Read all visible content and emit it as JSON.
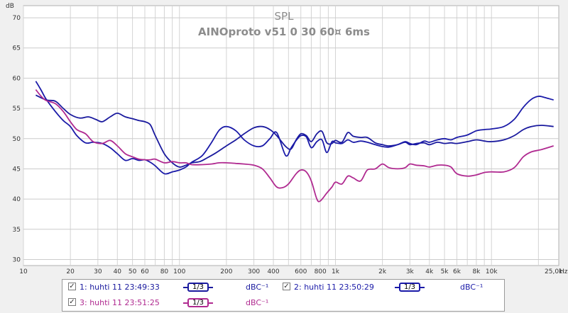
{
  "chart_data": {
    "type": "line",
    "title": "SPL",
    "subtitle": "AINOproto v51 0 30 60¤ 6ms",
    "ylabel": "dB",
    "xunit": "Hz",
    "xscale": "log",
    "xlim": [
      10,
      27000
    ],
    "ylim": [
      29,
      72
    ],
    "grid": true,
    "yticks": [
      {
        "value": 30,
        "label": "30"
      },
      {
        "value": 35,
        "label": "35"
      },
      {
        "value": 40,
        "label": "40"
      },
      {
        "value": 45,
        "label": "45"
      },
      {
        "value": 50,
        "label": "50"
      },
      {
        "value": 55,
        "label": "55"
      },
      {
        "value": 60,
        "label": "60"
      },
      {
        "value": 65,
        "label": "65"
      },
      {
        "value": 70,
        "label": "70"
      }
    ],
    "xticks": [
      {
        "value": 10,
        "label": "10"
      },
      {
        "value": 20,
        "label": "20"
      },
      {
        "value": 30,
        "label": "30"
      },
      {
        "value": 40,
        "label": "40"
      },
      {
        "value": 50,
        "label": "50"
      },
      {
        "value": 60,
        "label": "60"
      },
      {
        "value": 80,
        "label": "80"
      },
      {
        "value": 100,
        "label": "100"
      },
      {
        "value": 200,
        "label": "200"
      },
      {
        "value": 300,
        "label": "300"
      },
      {
        "value": 400,
        "label": "400"
      },
      {
        "value": 600,
        "label": "600"
      },
      {
        "value": 800,
        "label": "800"
      },
      {
        "value": 1000,
        "label": "1k"
      },
      {
        "value": 2000,
        "label": "2k"
      },
      {
        "value": 3000,
        "label": "3k"
      },
      {
        "value": 4000,
        "label": "4k"
      },
      {
        "value": 5000,
        "label": "5k"
      },
      {
        "value": 6000,
        "label": "6k"
      },
      {
        "value": 8000,
        "label": "8k"
      },
      {
        "value": 10000,
        "label": "10k"
      },
      {
        "value": 25000,
        "label": "25,0k"
      }
    ],
    "series": [
      {
        "name": "1: huhti 11 23:49:33",
        "color": "#1a1a9e",
        "points": [
          [
            12,
            57.2
          ],
          [
            14,
            56.4
          ],
          [
            16,
            56.2
          ],
          [
            18,
            55.0
          ],
          [
            20,
            54.0
          ],
          [
            23,
            53.4
          ],
          [
            26,
            53.6
          ],
          [
            29,
            53.2
          ],
          [
            32,
            52.8
          ],
          [
            36,
            53.6
          ],
          [
            40,
            54.2
          ],
          [
            45,
            53.6
          ],
          [
            50,
            53.3
          ],
          [
            55,
            53.0
          ],
          [
            60,
            52.8
          ],
          [
            65,
            52.3
          ],
          [
            70,
            50.5
          ],
          [
            80,
            47.5
          ],
          [
            90,
            46.0
          ],
          [
            100,
            45.3
          ],
          [
            110,
            45.6
          ],
          [
            120,
            46.0
          ],
          [
            135,
            46.2
          ],
          [
            150,
            46.8
          ],
          [
            170,
            47.6
          ],
          [
            200,
            48.8
          ],
          [
            230,
            49.8
          ],
          [
            260,
            50.8
          ],
          [
            300,
            51.8
          ],
          [
            340,
            52.0
          ],
          [
            380,
            51.5
          ],
          [
            420,
            50.5
          ],
          [
            480,
            48.7
          ],
          [
            520,
            48.3
          ],
          [
            560,
            49.8
          ],
          [
            600,
            50.8
          ],
          [
            650,
            50.5
          ],
          [
            700,
            49.5
          ],
          [
            760,
            50.8
          ],
          [
            820,
            51.2
          ],
          [
            880,
            49.3
          ],
          [
            950,
            49.2
          ],
          [
            1000,
            49.7
          ],
          [
            1100,
            49.4
          ],
          [
            1200,
            51.0
          ],
          [
            1300,
            50.4
          ],
          [
            1450,
            50.2
          ],
          [
            1600,
            50.2
          ],
          [
            1800,
            49.3
          ],
          [
            2000,
            49.0
          ],
          [
            2200,
            48.8
          ],
          [
            2500,
            49.0
          ],
          [
            2800,
            49.4
          ],
          [
            3000,
            49.0
          ],
          [
            3300,
            49.2
          ],
          [
            3700,
            49.3
          ],
          [
            4000,
            49.0
          ],
          [
            4500,
            49.4
          ],
          [
            5000,
            49.2
          ],
          [
            5500,
            49.3
          ],
          [
            6000,
            49.2
          ],
          [
            7000,
            49.5
          ],
          [
            8000,
            49.8
          ],
          [
            9000,
            49.6
          ],
          [
            10000,
            49.5
          ],
          [
            12000,
            49.8
          ],
          [
            14000,
            50.5
          ],
          [
            16000,
            51.5
          ],
          [
            18000,
            52.0
          ],
          [
            21000,
            52.2
          ],
          [
            25000,
            52.0
          ]
        ]
      },
      {
        "name": "2: huhti 11 23:50:29",
        "color": "#1a1aa8",
        "points": [
          [
            12,
            59.5
          ],
          [
            13,
            58.0
          ],
          [
            14,
            56.5
          ],
          [
            16,
            54.5
          ],
          [
            18,
            53.0
          ],
          [
            20,
            52.0
          ],
          [
            22,
            50.5
          ],
          [
            25,
            49.3
          ],
          [
            28,
            49.4
          ],
          [
            32,
            49.2
          ],
          [
            36,
            48.5
          ],
          [
            40,
            47.5
          ],
          [
            45,
            46.4
          ],
          [
            50,
            46.7
          ],
          [
            55,
            46.4
          ],
          [
            60,
            46.5
          ],
          [
            65,
            46.1
          ],
          [
            70,
            45.5
          ],
          [
            80,
            44.2
          ],
          [
            90,
            44.5
          ],
          [
            100,
            44.8
          ],
          [
            110,
            45.3
          ],
          [
            120,
            46.1
          ],
          [
            140,
            47.2
          ],
          [
            160,
            49.3
          ],
          [
            180,
            51.4
          ],
          [
            200,
            52.0
          ],
          [
            230,
            51.3
          ],
          [
            260,
            49.8
          ],
          [
            300,
            48.8
          ],
          [
            340,
            48.8
          ],
          [
            380,
            50.0
          ],
          [
            420,
            51.0
          ],
          [
            480,
            47.2
          ],
          [
            520,
            48.5
          ],
          [
            560,
            49.7
          ],
          [
            600,
            50.5
          ],
          [
            650,
            50.3
          ],
          [
            700,
            48.5
          ],
          [
            760,
            49.5
          ],
          [
            820,
            49.8
          ],
          [
            880,
            47.7
          ],
          [
            950,
            49.5
          ],
          [
            1000,
            49.3
          ],
          [
            1100,
            49.2
          ],
          [
            1200,
            49.8
          ],
          [
            1300,
            49.4
          ],
          [
            1450,
            49.6
          ],
          [
            1600,
            49.4
          ],
          [
            1800,
            49.0
          ],
          [
            2000,
            48.7
          ],
          [
            2200,
            48.6
          ],
          [
            2500,
            49.0
          ],
          [
            2800,
            49.5
          ],
          [
            3000,
            49.2
          ],
          [
            3300,
            49.0
          ],
          [
            3700,
            49.6
          ],
          [
            4000,
            49.4
          ],
          [
            4500,
            49.8
          ],
          [
            5000,
            50.0
          ],
          [
            5500,
            49.8
          ],
          [
            6000,
            50.2
          ],
          [
            7000,
            50.6
          ],
          [
            8000,
            51.3
          ],
          [
            9000,
            51.5
          ],
          [
            10000,
            51.6
          ],
          [
            12000,
            52.0
          ],
          [
            14000,
            53.2
          ],
          [
            16000,
            55.2
          ],
          [
            18000,
            56.5
          ],
          [
            20000,
            57.0
          ],
          [
            22000,
            56.8
          ],
          [
            25000,
            56.4
          ]
        ]
      },
      {
        "name": "3: huhti 11 23:51:25",
        "color": "#b02a90",
        "points": [
          [
            12,
            58.1
          ],
          [
            13,
            57.0
          ],
          [
            14,
            56.3
          ],
          [
            16,
            55.8
          ],
          [
            18,
            54.5
          ],
          [
            20,
            52.8
          ],
          [
            22,
            51.5
          ],
          [
            25,
            50.8
          ],
          [
            28,
            49.5
          ],
          [
            32,
            49.2
          ],
          [
            36,
            49.7
          ],
          [
            40,
            48.8
          ],
          [
            45,
            47.5
          ],
          [
            50,
            47.0
          ],
          [
            55,
            46.6
          ],
          [
            60,
            46.5
          ],
          [
            65,
            46.5
          ],
          [
            70,
            46.6
          ],
          [
            80,
            46.0
          ],
          [
            90,
            46.2
          ],
          [
            100,
            46.0
          ],
          [
            110,
            46.0
          ],
          [
            120,
            45.7
          ],
          [
            140,
            45.7
          ],
          [
            160,
            45.8
          ],
          [
            180,
            46.0
          ],
          [
            200,
            46.0
          ],
          [
            230,
            45.9
          ],
          [
            260,
            45.8
          ],
          [
            300,
            45.6
          ],
          [
            340,
            45.0
          ],
          [
            380,
            43.5
          ],
          [
            420,
            42.0
          ],
          [
            460,
            41.9
          ],
          [
            500,
            42.5
          ],
          [
            560,
            44.2
          ],
          [
            600,
            44.8
          ],
          [
            650,
            44.5
          ],
          [
            700,
            43.0
          ],
          [
            760,
            40.0
          ],
          [
            800,
            39.7
          ],
          [
            880,
            41.0
          ],
          [
            950,
            42.0
          ],
          [
            1000,
            42.8
          ],
          [
            1100,
            42.5
          ],
          [
            1200,
            43.8
          ],
          [
            1300,
            43.5
          ],
          [
            1450,
            43.0
          ],
          [
            1600,
            44.8
          ],
          [
            1800,
            45.0
          ],
          [
            2000,
            45.8
          ],
          [
            2200,
            45.2
          ],
          [
            2500,
            45.0
          ],
          [
            2800,
            45.2
          ],
          [
            3000,
            45.8
          ],
          [
            3300,
            45.6
          ],
          [
            3700,
            45.5
          ],
          [
            4000,
            45.3
          ],
          [
            4500,
            45.6
          ],
          [
            5000,
            45.6
          ],
          [
            5500,
            45.3
          ],
          [
            6000,
            44.2
          ],
          [
            7000,
            43.8
          ],
          [
            8000,
            44.0
          ],
          [
            9000,
            44.4
          ],
          [
            10000,
            44.5
          ],
          [
            12000,
            44.5
          ],
          [
            14000,
            45.2
          ],
          [
            16000,
            47.0
          ],
          [
            18000,
            47.8
          ],
          [
            21000,
            48.2
          ],
          [
            25000,
            48.8
          ]
        ]
      }
    ]
  },
  "legend": {
    "entries": [
      {
        "checked": "✓",
        "label": "1: huhti 11 23:49:33",
        "smoothing": "1/3",
        "unit": "dBC⁻¹",
        "color": "#1a1a9e"
      },
      {
        "checked": "✓",
        "label": "2: huhti 11 23:50:29",
        "smoothing": "1/3",
        "unit": "dBC⁻¹",
        "color": "#1a1aa8"
      },
      {
        "checked": "✓",
        "label": "3: huhti 11 23:51:25",
        "smoothing": "1/3",
        "unit": "dBC⁻¹",
        "color": "#b02a90"
      }
    ]
  }
}
